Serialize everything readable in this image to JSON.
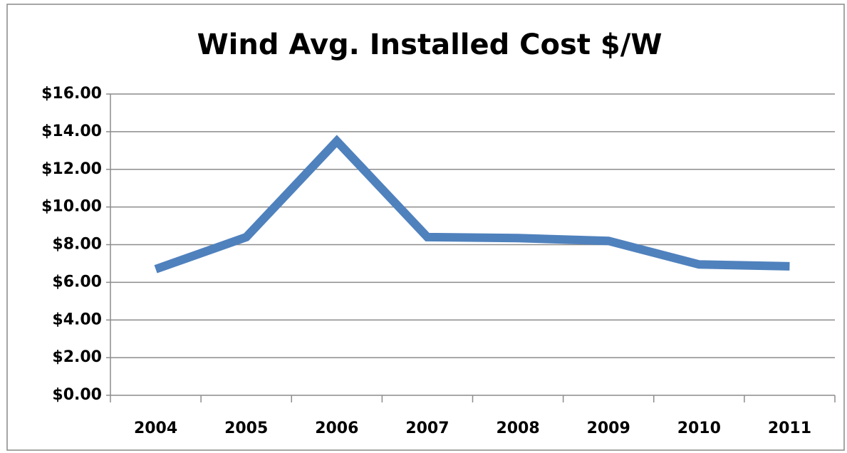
{
  "chart_data": {
    "type": "line",
    "title": "Wind Avg. Installed Cost $/W",
    "categories": [
      "2004",
      "2005",
      "2006",
      "2007",
      "2008",
      "2009",
      "2010",
      "2011"
    ],
    "series": [
      {
        "name": "Wind Avg. Installed Cost $/W",
        "color": "#4f81bd",
        "values": [
          6.7,
          8.4,
          13.5,
          8.4,
          8.35,
          8.2,
          6.95,
          6.85
        ]
      }
    ],
    "ylim": [
      0,
      16
    ],
    "yticks": [
      {
        "value": 0,
        "label": "$0.00"
      },
      {
        "value": 2,
        "label": "$2.00"
      },
      {
        "value": 4,
        "label": "$4.00"
      },
      {
        "value": 6,
        "label": "$6.00"
      },
      {
        "value": 8,
        "label": "$8.00"
      },
      {
        "value": 10,
        "label": "$10.00"
      },
      {
        "value": 12,
        "label": "$12.00"
      },
      {
        "value": 14,
        "label": "$14.00"
      },
      {
        "value": 16,
        "label": "$16.00"
      }
    ],
    "grid": true
  }
}
